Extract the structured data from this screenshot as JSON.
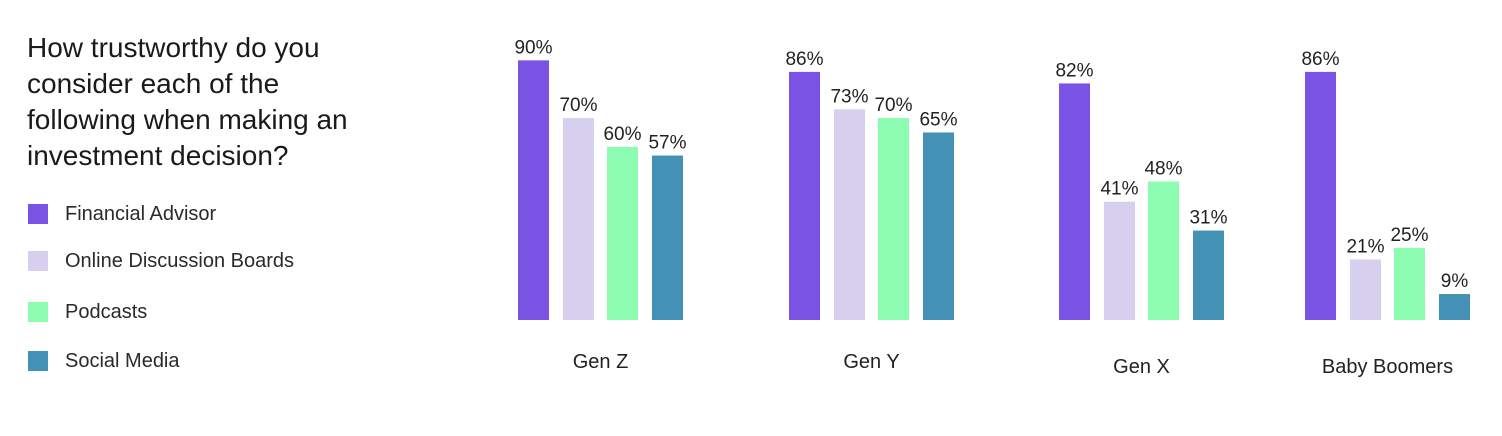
{
  "chart_data": {
    "type": "bar",
    "title": "How trustworthy do you consider each of the following when making an investment decision?",
    "categories": [
      "Gen Z",
      "Gen Y",
      "Gen X",
      "Baby Boomers"
    ],
    "series": [
      {
        "name": "Financial Advisor",
        "color": "#7b53e4",
        "values": [
          90,
          86,
          82,
          86
        ],
        "labels": [
          "90%",
          "86%",
          "82%",
          "86%"
        ]
      },
      {
        "name": "Online Discussion Boards",
        "color": "#d6d0ee",
        "values": [
          70,
          73,
          41,
          21
        ],
        "labels": [
          "70%",
          "73%",
          "41%",
          "21%"
        ]
      },
      {
        "name": "Podcasts",
        "color": "#8cfcb0",
        "values": [
          60,
          70,
          48,
          25
        ],
        "labels": [
          "60%",
          "70%",
          "48%",
          "25%"
        ]
      },
      {
        "name": "Social Media",
        "color": "#4392b6",
        "values": [
          57,
          65,
          31,
          9
        ],
        "labels": [
          "57%",
          "65%",
          "31%",
          "9%"
        ]
      }
    ],
    "ylim": [
      0,
      100
    ],
    "grid": false,
    "legend_position": "left"
  }
}
